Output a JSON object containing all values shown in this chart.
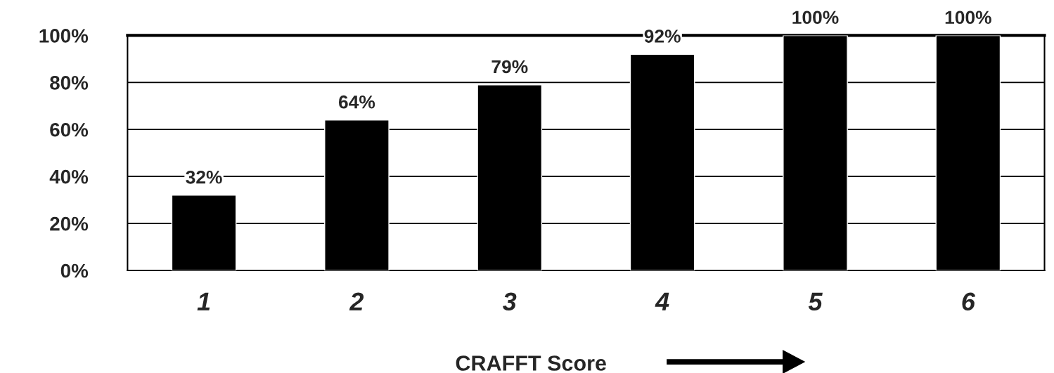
{
  "chart_data": {
    "type": "bar",
    "xlabel": "CRAFFT Score",
    "categories": [
      "1",
      "2",
      "3",
      "4",
      "5",
      "6"
    ],
    "values": [
      32,
      64,
      79,
      92,
      100,
      100
    ],
    "value_labels": [
      "32%",
      "64%",
      "79%",
      "92%",
      "100%",
      "100%"
    ],
    "color": "#000000",
    "ylim": [
      0,
      100
    ],
    "yticks": [
      {
        "value": 0,
        "label": "0%"
      },
      {
        "value": 20,
        "label": "20%"
      },
      {
        "value": 40,
        "label": "40%"
      },
      {
        "value": 60,
        "label": "60%"
      },
      {
        "value": 80,
        "label": "80%"
      },
      {
        "value": 100,
        "label": "100%"
      }
    ],
    "grid": "y"
  }
}
